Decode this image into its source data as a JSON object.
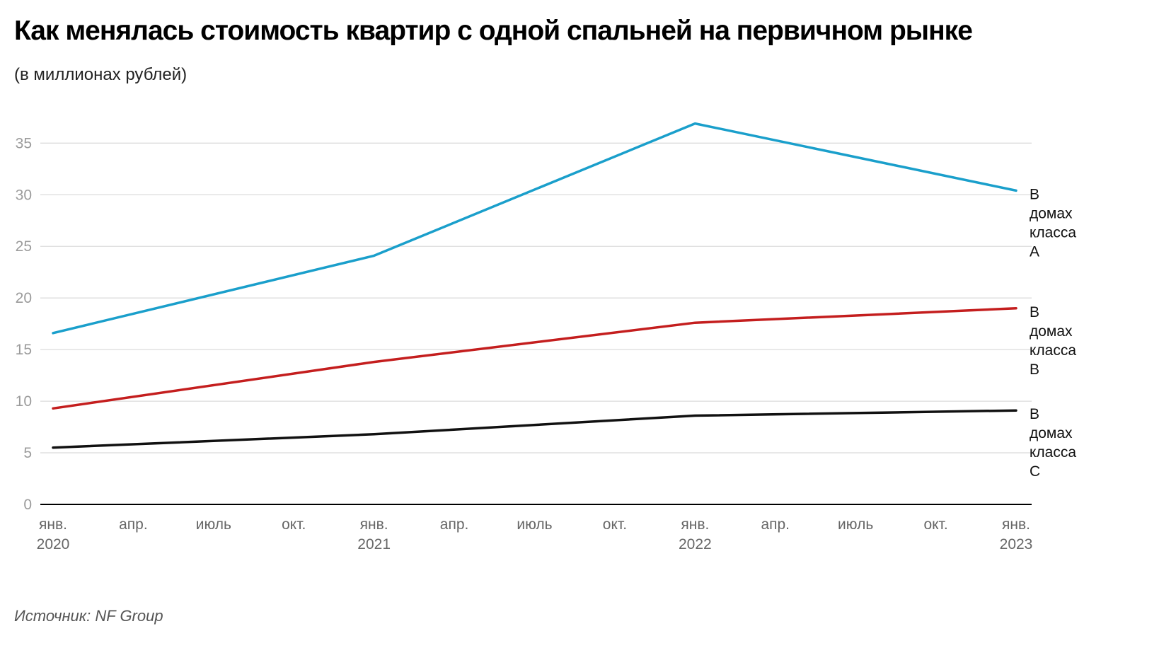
{
  "header": {
    "title": "Как менялась стоимость квартир с одной спальней на первичном рынке",
    "subtitle": "(в миллионах рублей)"
  },
  "footer": {
    "source": "Источник: NF Group"
  },
  "chart_data": {
    "type": "line",
    "title": "Как менялась стоимость квартир с одной спальней на первичном рынке",
    "subtitle": "(в миллионах рублей)",
    "xlabel": "",
    "ylabel": "",
    "x": [
      "янв. 2020",
      "янв. 2021",
      "янв. 2022",
      "янв. 2023"
    ],
    "x_ticks": [
      [
        "янв.",
        "2020"
      ],
      [
        "апр.",
        ""
      ],
      [
        "июль",
        ""
      ],
      [
        "окт.",
        ""
      ],
      [
        "янв.",
        "2021"
      ],
      [
        "апр.",
        ""
      ],
      [
        "июль",
        ""
      ],
      [
        "окт.",
        ""
      ],
      [
        "янв.",
        "2022"
      ],
      [
        "апр.",
        ""
      ],
      [
        "июль",
        ""
      ],
      [
        "окт.",
        ""
      ],
      [
        "янв.",
        "2023"
      ]
    ],
    "ylim": [
      0,
      35
    ],
    "y_ticks": [
      0,
      5,
      10,
      15,
      20,
      25,
      30,
      35
    ],
    "grid": true,
    "legend": "direct labels at right end of lines",
    "series": [
      {
        "name": "В домах класса А",
        "label_lines": [
          "В",
          "домах",
          "класса",
          "А"
        ],
        "color": "#1a9fcb",
        "values": [
          16.6,
          24.1,
          36.9,
          30.4
        ]
      },
      {
        "name": "В домах класса В",
        "label_lines": [
          "В",
          "домах",
          "класса",
          "В"
        ],
        "color": "#c41e1e",
        "values": [
          9.3,
          13.8,
          17.6,
          19.0
        ]
      },
      {
        "name": "В домах класса С",
        "label_lines": [
          "В",
          "домах",
          "класса",
          "С"
        ],
        "color": "#111111",
        "values": [
          5.5,
          6.8,
          8.6,
          9.1
        ]
      }
    ],
    "source": "Источник: NF Group"
  }
}
